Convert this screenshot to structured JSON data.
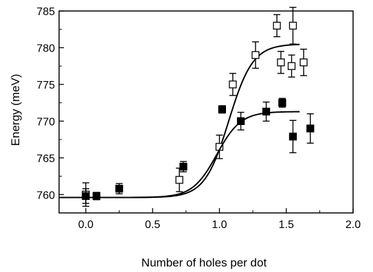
{
  "chart_data": {
    "type": "scatter",
    "title": "",
    "xlabel": "Number of holes per dot",
    "ylabel": "Energy (meV)",
    "xlim": [
      -0.2,
      2.0
    ],
    "ylim": [
      757.5,
      785
    ],
    "xticks": [
      0.0,
      0.5,
      1.0,
      1.5,
      2.0
    ],
    "xtick_labels": [
      "0.0",
      "0.5",
      "1.0",
      "1.5",
      "2.0"
    ],
    "yticks": [
      760,
      765,
      770,
      775,
      780,
      785
    ],
    "ytick_labels": [
      "760",
      "765",
      "770",
      "775",
      "780",
      "785"
    ],
    "grid": false,
    "legend": "none",
    "series": [
      {
        "marker": "open-square",
        "color": "#000000",
        "points": [
          {
            "x": 0.0,
            "y": 760.0,
            "err": 1.6
          },
          {
            "x": 0.7,
            "y": 762.0,
            "err": 1.6
          },
          {
            "x": 1.0,
            "y": 766.5,
            "err": 1.6
          },
          {
            "x": 1.1,
            "y": 775.0,
            "err": 1.5
          },
          {
            "x": 1.27,
            "y": 779.0,
            "err": 1.8
          },
          {
            "x": 1.43,
            "y": 783.0,
            "err": 1.5
          },
          {
            "x": 1.46,
            "y": 778.0,
            "err": 1.5
          },
          {
            "x": 1.54,
            "y": 777.5,
            "err": 1.5
          },
          {
            "x": 1.55,
            "y": 783.0,
            "err": 2.5
          },
          {
            "x": 1.63,
            "y": 778.0,
            "err": 1.8
          }
        ],
        "fit_curve": {
          "low": 759.6,
          "high": 780.5,
          "center": 1.07,
          "width": 0.09,
          "x_range": [
            -0.2,
            1.6
          ]
        }
      },
      {
        "marker": "filled-square",
        "color": "#000000",
        "points": [
          {
            "x": 0.0,
            "y": 759.8,
            "err": 1.0
          },
          {
            "x": 0.08,
            "y": 759.8,
            "err": 0.5
          },
          {
            "x": 0.25,
            "y": 760.8,
            "err": 0.7
          },
          {
            "x": 0.73,
            "y": 763.8,
            "err": 0.7
          },
          {
            "x": 1.02,
            "y": 771.6,
            "err": 0.5
          },
          {
            "x": 1.16,
            "y": 770.0,
            "err": 1.2
          },
          {
            "x": 1.35,
            "y": 771.3,
            "err": 1.3
          },
          {
            "x": 1.47,
            "y": 772.5,
            "err": 0.6
          },
          {
            "x": 1.55,
            "y": 767.9,
            "err": 2.2
          },
          {
            "x": 1.68,
            "y": 769.0,
            "err": 2.0
          }
        ],
        "fit_curve": {
          "low": 759.6,
          "high": 771.3,
          "center": 0.98,
          "width": 0.09,
          "x_range": [
            -0.2,
            1.6
          ]
        }
      }
    ]
  }
}
